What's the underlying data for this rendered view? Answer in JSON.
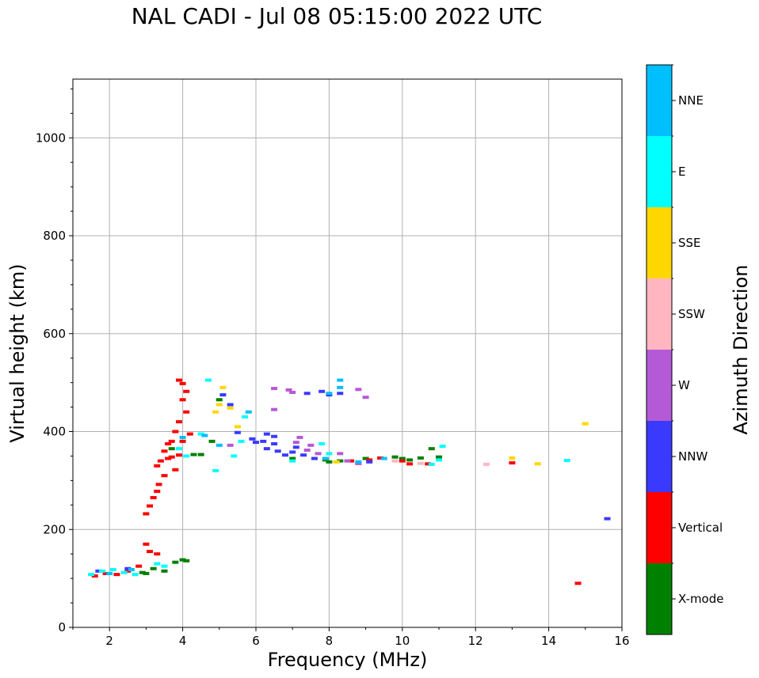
{
  "chart_data": {
    "type": "scatter",
    "title": "NAL CADI - Jul 08 05:15:00 2022 UTC",
    "xlabel": "Frequency (MHz)",
    "ylabel": "Virtual height (km)",
    "xlim": [
      1,
      16
    ],
    "ylim": [
      0,
      1120
    ],
    "xticks": [
      2,
      4,
      6,
      8,
      10,
      12,
      14,
      16
    ],
    "yticks": [
      0,
      200,
      400,
      600,
      800,
      1000
    ],
    "grid": true,
    "colorbar": {
      "label": "Azimuth Direction",
      "categories": [
        {
          "name": "X-mode",
          "color": "#008000"
        },
        {
          "name": "Vertical",
          "color": "#ff0000"
        },
        {
          "name": "NNW",
          "color": "#3a3aff"
        },
        {
          "name": "W",
          "color": "#b45ad6"
        },
        {
          "name": "SSW",
          "color": "#ffb6c1"
        },
        {
          "name": "SSE",
          "color": "#ffd700"
        },
        {
          "name": "E",
          "color": "#00ffff"
        },
        {
          "name": "NNE",
          "color": "#00bfff"
        }
      ]
    },
    "series": [
      {
        "name": "X-mode",
        "points": [
          [
            3.2,
            120
          ],
          [
            3.5,
            115
          ],
          [
            3.8,
            133
          ],
          [
            4.0,
            138
          ],
          [
            4.1,
            136
          ],
          [
            2.9,
            112
          ],
          [
            3.0,
            110
          ],
          [
            3.7,
            365
          ],
          [
            4.3,
            353
          ],
          [
            4.5,
            353
          ],
          [
            4.8,
            380
          ],
          [
            5.0,
            465
          ],
          [
            7.0,
            345
          ],
          [
            7.9,
            342
          ],
          [
            8.0,
            338
          ],
          [
            8.3,
            340
          ],
          [
            9.0,
            345
          ],
          [
            9.8,
            348
          ],
          [
            10.0,
            345
          ],
          [
            10.2,
            342
          ],
          [
            10.5,
            346
          ],
          [
            10.8,
            365
          ],
          [
            11.0,
            348
          ]
        ]
      },
      {
        "name": "Vertical",
        "points": [
          [
            1.6,
            105
          ],
          [
            1.9,
            110
          ],
          [
            2.2,
            108
          ],
          [
            2.5,
            115
          ],
          [
            2.8,
            125
          ],
          [
            3.0,
            170
          ],
          [
            3.1,
            155
          ],
          [
            3.3,
            150
          ],
          [
            3.0,
            232
          ],
          [
            3.1,
            248
          ],
          [
            3.2,
            265
          ],
          [
            3.3,
            278
          ],
          [
            3.35,
            292
          ],
          [
            3.3,
            330
          ],
          [
            3.4,
            340
          ],
          [
            3.5,
            360
          ],
          [
            3.6,
            375
          ],
          [
            3.5,
            310
          ],
          [
            3.7,
            348
          ],
          [
            3.8,
            322
          ],
          [
            3.6,
            345
          ],
          [
            3.7,
            380
          ],
          [
            3.8,
            400
          ],
          [
            3.9,
            420
          ],
          [
            3.9,
            505
          ],
          [
            4.0,
            498
          ],
          [
            4.1,
            482
          ],
          [
            4.0,
            465
          ],
          [
            4.1,
            440
          ],
          [
            4.2,
            395
          ],
          [
            4.0,
            380
          ],
          [
            3.9,
            352
          ],
          [
            8.6,
            340
          ],
          [
            8.8,
            335
          ],
          [
            9.1,
            342
          ],
          [
            9.4,
            346
          ],
          [
            10.0,
            340
          ],
          [
            10.2,
            334
          ],
          [
            10.7,
            334
          ],
          [
            13.0,
            336
          ],
          [
            14.8,
            90
          ]
        ]
      },
      {
        "name": "NNW",
        "points": [
          [
            1.7,
            115
          ],
          [
            2.5,
            120
          ],
          [
            5.1,
            475
          ],
          [
            5.3,
            455
          ],
          [
            5.5,
            398
          ],
          [
            5.9,
            385
          ],
          [
            6.0,
            378
          ],
          [
            6.2,
            380
          ],
          [
            6.5,
            375
          ],
          [
            6.3,
            365
          ],
          [
            6.6,
            360
          ],
          [
            6.8,
            352
          ],
          [
            7.0,
            358
          ],
          [
            7.3,
            352
          ],
          [
            7.6,
            345
          ],
          [
            7.4,
            478
          ],
          [
            7.8,
            482
          ],
          [
            8.0,
            475
          ],
          [
            8.3,
            478
          ],
          [
            9.1,
            338
          ],
          [
            6.3,
            395
          ],
          [
            6.5,
            390
          ],
          [
            7.1,
            368
          ],
          [
            15.6,
            222
          ]
        ]
      },
      {
        "name": "W",
        "points": [
          [
            5.3,
            372
          ],
          [
            6.5,
            488
          ],
          [
            6.5,
            445
          ],
          [
            6.9,
            485
          ],
          [
            7.0,
            480
          ],
          [
            7.1,
            378
          ],
          [
            7.2,
            388
          ],
          [
            7.5,
            372
          ],
          [
            7.4,
            362
          ],
          [
            7.7,
            355
          ],
          [
            8.3,
            355
          ],
          [
            8.5,
            340
          ],
          [
            8.8,
            335
          ],
          [
            9.0,
            470
          ],
          [
            8.8,
            486
          ]
        ]
      },
      {
        "name": "SSW",
        "points": [
          [
            9.8,
            340
          ],
          [
            10.5,
            335
          ],
          [
            12.3,
            333
          ]
        ]
      },
      {
        "name": "SSE",
        "points": [
          [
            4.9,
            440
          ],
          [
            5.1,
            490
          ],
          [
            5.3,
            448
          ],
          [
            5.0,
            455
          ],
          [
            5.5,
            410
          ],
          [
            8.2,
            338
          ],
          [
            13.0,
            346
          ],
          [
            13.7,
            334
          ],
          [
            15.0,
            416
          ]
        ]
      },
      {
        "name": "E",
        "points": [
          [
            1.5,
            108
          ],
          [
            1.8,
            115
          ],
          [
            2.1,
            118
          ],
          [
            2.4,
            112
          ],
          [
            2.7,
            108
          ],
          [
            3.3,
            130
          ],
          [
            3.5,
            125
          ],
          [
            3.9,
            365
          ],
          [
            4.1,
            350
          ],
          [
            4.5,
            395
          ],
          [
            4.7,
            505
          ],
          [
            4.9,
            320
          ],
          [
            5.4,
            350
          ],
          [
            5.6,
            380
          ],
          [
            5.7,
            430
          ],
          [
            7.0,
            340
          ],
          [
            7.8,
            375
          ],
          [
            8.0,
            355
          ],
          [
            10.8,
            333
          ],
          [
            11.1,
            370
          ],
          [
            11.0,
            342
          ],
          [
            14.5,
            341
          ]
        ]
      },
      {
        "name": "NNE",
        "points": [
          [
            2.0,
            110
          ],
          [
            2.6,
            118
          ],
          [
            4.0,
            388
          ],
          [
            4.6,
            392
          ],
          [
            5.0,
            372
          ],
          [
            5.8,
            440
          ],
          [
            7.9,
            345
          ],
          [
            8.0,
            478
          ],
          [
            8.3,
            505
          ],
          [
            8.3,
            490
          ],
          [
            8.8,
            338
          ],
          [
            9.5,
            345
          ]
        ]
      }
    ]
  }
}
